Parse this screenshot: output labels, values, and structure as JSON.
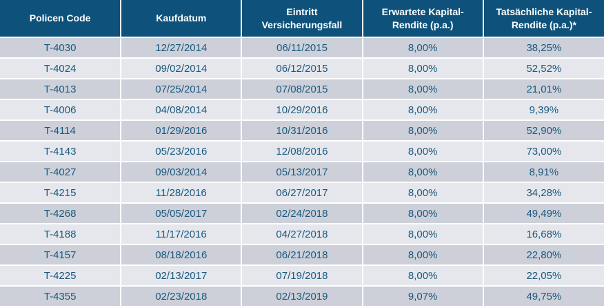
{
  "colors": {
    "header_bg": "#0E527B",
    "header_text": "#FFFFFF",
    "row_dark": "#CDD0D9",
    "row_light": "#E5E7EC",
    "text_blue": "#19597F",
    "divider": "#FFFFFF"
  },
  "table": {
    "columns": [
      {
        "id": "policen-code",
        "label": "Policen Code"
      },
      {
        "id": "kaufdatum",
        "label": "Kaufdatum"
      },
      {
        "id": "eintritt-versicherungsfall",
        "label": "Eintritt Versicherungsfall"
      },
      {
        "id": "erwartete-kapital-rendite",
        "label": "Erwartete Kapital-Rendite (p.a.)"
      },
      {
        "id": "tatsaechliche-kapital-rendite",
        "label": "Tatsächliche Kapital-Rendite (p.a.)*"
      }
    ],
    "rows": [
      {
        "cells": [
          "T-4030",
          "12/27/2014",
          "06/11/2015",
          "8,00%",
          "38,25%"
        ]
      },
      {
        "cells": [
          "T-4024",
          "09/02/2014",
          "06/12/2015",
          "8,00%",
          "52,52%"
        ]
      },
      {
        "cells": [
          "T-4013",
          "07/25/2014",
          "07/08/2015",
          "8,00%",
          "21,01%"
        ]
      },
      {
        "cells": [
          "T-4006",
          "04/08/2014",
          "10/29/2016",
          "8,00%",
          "9,39%"
        ]
      },
      {
        "cells": [
          "T-4114",
          "01/29/2016",
          "10/31/2016",
          "8,00%",
          "52,90%"
        ]
      },
      {
        "cells": [
          "T-4143",
          "05/23/2016",
          "12/08/2016",
          "8,00%",
          "73,00%"
        ]
      },
      {
        "cells": [
          "T-4027",
          "09/03/2014",
          "05/13/2017",
          "8,00%",
          "8,91%"
        ]
      },
      {
        "cells": [
          "T-4215",
          "11/28/2016",
          "06/27/2017",
          "8,00%",
          "34,28%"
        ]
      },
      {
        "cells": [
          "T-4268",
          "05/05/2017",
          "02/24/2018",
          "8,00%",
          "49,49%"
        ]
      },
      {
        "cells": [
          "T-4188",
          "11/17/2016",
          "04/27/2018",
          "8,00%",
          "16,68%"
        ]
      },
      {
        "cells": [
          "T-4157",
          "08/18/2016",
          "06/21/2018",
          "8,00%",
          "22,80%"
        ]
      },
      {
        "cells": [
          "T-4225",
          "02/13/2017",
          "07/19/2018",
          "8,00%",
          "22,05%"
        ]
      },
      {
        "cells": [
          "T-4355",
          "02/23/2018",
          "02/13/2019",
          "9,07%",
          "49,75%"
        ]
      }
    ]
  }
}
